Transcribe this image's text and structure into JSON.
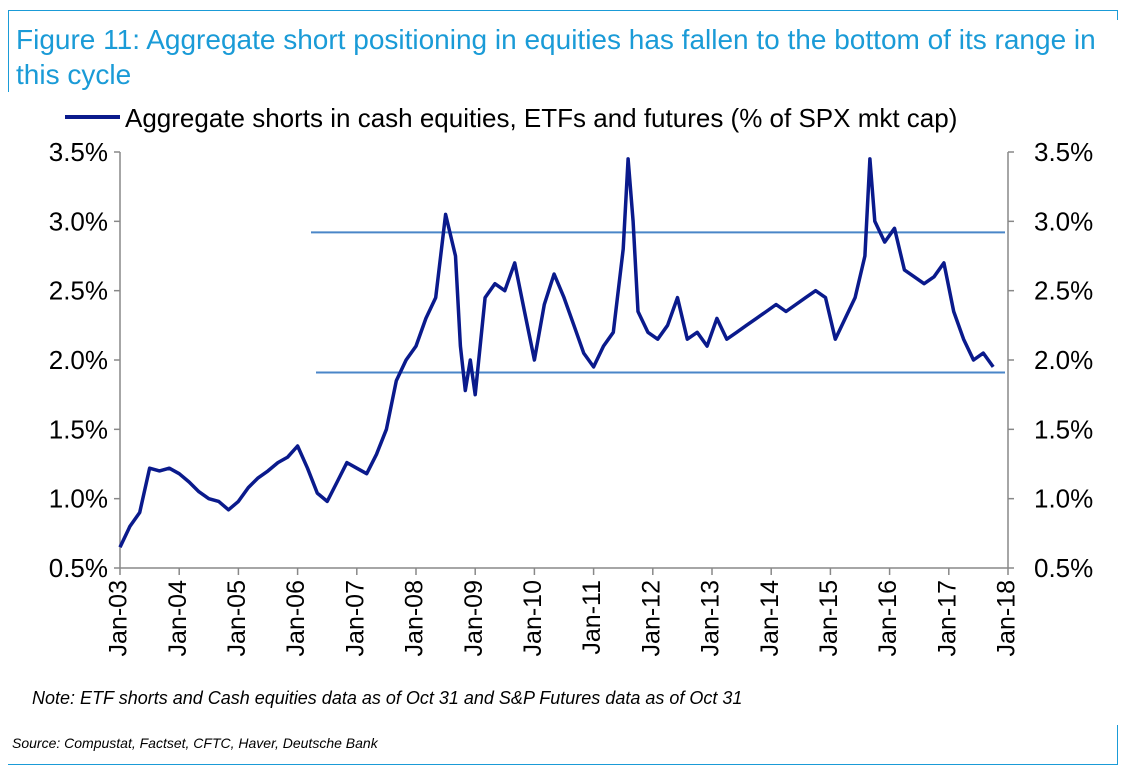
{
  "header": {
    "title": "Figure 11: Aggregate short positioning in equities has fallen to the bottom of its range in this cycle"
  },
  "footer": {
    "note": "Note: ETF shorts and Cash equities data as of Oct 31 and S&P Futures data as of Oct 31",
    "source": "Source: Compustat, Factset, CFTC, Haver, Deutsche Bank"
  },
  "colors": {
    "title": "#1a9bd7",
    "series": "#0a1a8c",
    "range_lines": "#4a86c8",
    "axis": "#888888"
  },
  "chart_data": {
    "type": "line",
    "title": "",
    "xlabel": "",
    "ylabel": "",
    "legend_position": "top",
    "grid": false,
    "ylim": [
      0.005,
      0.035
    ],
    "xlim": [
      "2003-01",
      "2018-01"
    ],
    "y_ticks": [
      "0.5%",
      "1.0%",
      "1.5%",
      "2.0%",
      "2.5%",
      "3.0%",
      "3.5%"
    ],
    "x_ticks": [
      "Jan-03",
      "Jan-04",
      "Jan-05",
      "Jan-06",
      "Jan-07",
      "Jan-08",
      "Jan-09",
      "Jan-10",
      "Jan-11",
      "Jan-12",
      "Jan-13",
      "Jan-14",
      "Jan-15",
      "Jan-16",
      "Jan-17",
      "Jan-18"
    ],
    "series": [
      {
        "name": "Aggregate shorts in cash equities, ETFs and futures (% of SPX mkt cap)",
        "x": [
          "2003-01",
          "2003-03",
          "2003-05",
          "2003-07",
          "2003-09",
          "2003-11",
          "2004-01",
          "2004-03",
          "2004-05",
          "2004-07",
          "2004-09",
          "2004-11",
          "2005-01",
          "2005-03",
          "2005-05",
          "2005-07",
          "2005-09",
          "2005-11",
          "2006-01",
          "2006-03",
          "2006-05",
          "2006-07",
          "2006-09",
          "2006-11",
          "2007-01",
          "2007-03",
          "2007-05",
          "2007-07",
          "2007-09",
          "2007-11",
          "2008-01",
          "2008-03",
          "2008-05",
          "2008-07",
          "2008-09",
          "2008-10",
          "2008-11",
          "2008-12",
          "2009-01",
          "2009-03",
          "2009-05",
          "2009-07",
          "2009-09",
          "2009-11",
          "2010-01",
          "2010-03",
          "2010-05",
          "2010-07",
          "2010-09",
          "2010-11",
          "2011-01",
          "2011-03",
          "2011-05",
          "2011-07",
          "2011-08",
          "2011-09",
          "2011-10",
          "2011-12",
          "2012-02",
          "2012-04",
          "2012-06",
          "2012-08",
          "2012-10",
          "2012-12",
          "2013-02",
          "2013-04",
          "2013-06",
          "2013-08",
          "2013-10",
          "2013-12",
          "2014-02",
          "2014-04",
          "2014-06",
          "2014-08",
          "2014-10",
          "2014-12",
          "2015-02",
          "2015-04",
          "2015-06",
          "2015-08",
          "2015-09",
          "2015-10",
          "2015-12",
          "2016-02",
          "2016-04",
          "2016-06",
          "2016-08",
          "2016-10",
          "2016-12",
          "2017-02",
          "2017-04",
          "2017-06",
          "2017-08",
          "2017-10"
        ],
        "values": [
          0.0065,
          0.008,
          0.009,
          0.0122,
          0.012,
          0.0122,
          0.0118,
          0.0112,
          0.0105,
          0.01,
          0.0098,
          0.0092,
          0.0098,
          0.0108,
          0.0115,
          0.012,
          0.0126,
          0.013,
          0.0138,
          0.0122,
          0.0104,
          0.0098,
          0.0112,
          0.0126,
          0.0122,
          0.0118,
          0.0132,
          0.015,
          0.0185,
          0.02,
          0.021,
          0.023,
          0.0245,
          0.0305,
          0.0275,
          0.021,
          0.0178,
          0.02,
          0.0175,
          0.0245,
          0.0255,
          0.025,
          0.027,
          0.0235,
          0.02,
          0.024,
          0.0262,
          0.0245,
          0.0225,
          0.0205,
          0.0195,
          0.021,
          0.022,
          0.028,
          0.0345,
          0.03,
          0.0235,
          0.022,
          0.0215,
          0.0225,
          0.0245,
          0.0215,
          0.022,
          0.021,
          0.023,
          0.0215,
          0.022,
          0.0225,
          0.023,
          0.0235,
          0.024,
          0.0235,
          0.024,
          0.0245,
          0.025,
          0.0245,
          0.0215,
          0.023,
          0.0245,
          0.0275,
          0.0345,
          0.03,
          0.0285,
          0.0295,
          0.0265,
          0.026,
          0.0255,
          0.026,
          0.027,
          0.0235,
          0.0215,
          0.02,
          0.0205,
          0.0195
        ]
      }
    ],
    "reference_lines": [
      0.0292,
      0.0191
    ]
  }
}
